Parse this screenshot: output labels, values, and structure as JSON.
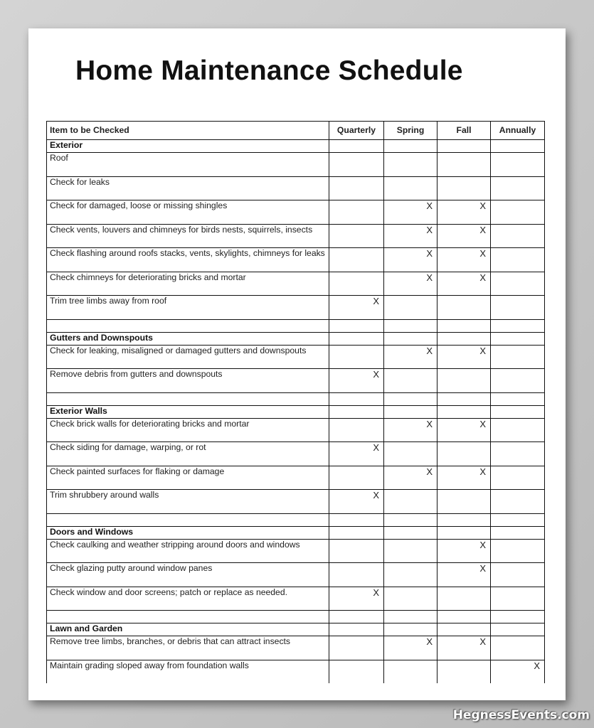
{
  "title": "Home Maintenance Schedule",
  "columns": [
    "Item to be Checked",
    "Quarterly",
    "Spring",
    "Fall",
    "Annually"
  ],
  "rows": [
    {
      "type": "section",
      "label": "Exterior"
    },
    {
      "type": "item",
      "label": "Roof",
      "marks": [
        "",
        "",
        "",
        ""
      ]
    },
    {
      "type": "item",
      "label": "Check for leaks",
      "marks": [
        "",
        "",
        "",
        ""
      ]
    },
    {
      "type": "item",
      "label": "Check for damaged, loose or missing shingles",
      "marks": [
        "",
        "X",
        "X",
        ""
      ]
    },
    {
      "type": "item",
      "label": "Check vents, louvers and chimneys for birds nests, squirrels, insects",
      "marks": [
        "",
        "X",
        "X",
        ""
      ]
    },
    {
      "type": "item",
      "label": "Check flashing around roofs stacks, vents, skylights, chimneys for leaks",
      "marks": [
        "",
        "X",
        "X",
        ""
      ]
    },
    {
      "type": "item",
      "label": "Check chimneys for deteriorating bricks and mortar",
      "marks": [
        "",
        "X",
        "X",
        ""
      ]
    },
    {
      "type": "item",
      "label": "Trim tree limbs away from roof",
      "marks": [
        "X",
        "",
        "",
        ""
      ]
    },
    {
      "type": "blank"
    },
    {
      "type": "section",
      "label": "Gutters and Downspouts"
    },
    {
      "type": "item",
      "label": "Check for leaking, misaligned or damaged gutters and downspouts",
      "marks": [
        "",
        "X",
        "X",
        ""
      ]
    },
    {
      "type": "item",
      "label": "Remove debris from gutters and downspouts",
      "marks": [
        "X",
        "",
        "",
        ""
      ]
    },
    {
      "type": "blank"
    },
    {
      "type": "section",
      "label": "Exterior Walls"
    },
    {
      "type": "item",
      "label": "Check brick walls for deteriorating bricks and mortar",
      "marks": [
        "",
        "X",
        "X",
        ""
      ]
    },
    {
      "type": "item",
      "label": "Check siding for damage, warping, or rot",
      "marks": [
        "X",
        "",
        "",
        ""
      ]
    },
    {
      "type": "item",
      "label": "Check painted surfaces for flaking or damage",
      "marks": [
        "",
        "X",
        "X",
        ""
      ]
    },
    {
      "type": "item",
      "label": "Trim shrubbery around walls",
      "marks": [
        "X",
        "",
        "",
        ""
      ]
    },
    {
      "type": "blank"
    },
    {
      "type": "section",
      "label": "Doors and Windows"
    },
    {
      "type": "item",
      "label": "Check caulking and weather stripping around doors and windows",
      "marks": [
        "",
        "",
        "X",
        ""
      ]
    },
    {
      "type": "item",
      "label": "Check glazing putty around window panes",
      "marks": [
        "",
        "",
        "X",
        ""
      ]
    },
    {
      "type": "item",
      "label": "Check window and door screens; patch or replace as needed.",
      "marks": [
        "X",
        "",
        "",
        ""
      ]
    },
    {
      "type": "blank"
    },
    {
      "type": "section",
      "label": "Lawn and Garden"
    },
    {
      "type": "item",
      "label": "Remove tree limbs, branches, or debris that can attract insects",
      "marks": [
        "",
        "X",
        "X",
        ""
      ]
    },
    {
      "type": "item",
      "label": "Maintain grading sloped away from foundation walls",
      "marks": [
        "",
        "",
        "",
        "X"
      ]
    }
  ],
  "watermark": "HegnessEvents.com"
}
